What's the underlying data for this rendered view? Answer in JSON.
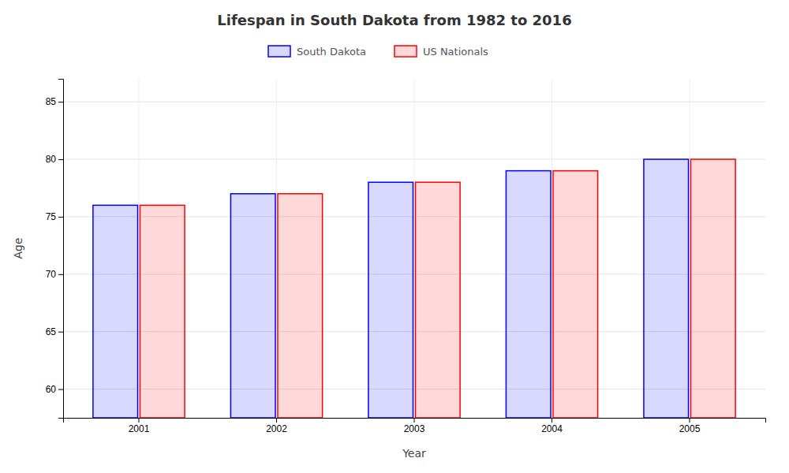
{
  "chart_data": {
    "type": "bar",
    "title": "Lifespan in South Dakota from 1982 to 2016",
    "xlabel": "Year",
    "ylabel": "Age",
    "categories": [
      "2001",
      "2002",
      "2003",
      "2004",
      "2005"
    ],
    "series": [
      {
        "name": "South Dakota",
        "color": "#0000ff",
        "values": [
          76,
          77,
          78,
          79,
          80
        ]
      },
      {
        "name": "US Nationals",
        "color": "#ff0000",
        "values": [
          76,
          77,
          78,
          79,
          80
        ]
      }
    ],
    "ylim": [
      57.5,
      87
    ],
    "yticks": [
      60,
      65,
      70,
      75,
      80,
      85
    ],
    "grid": true,
    "legend": "top"
  }
}
